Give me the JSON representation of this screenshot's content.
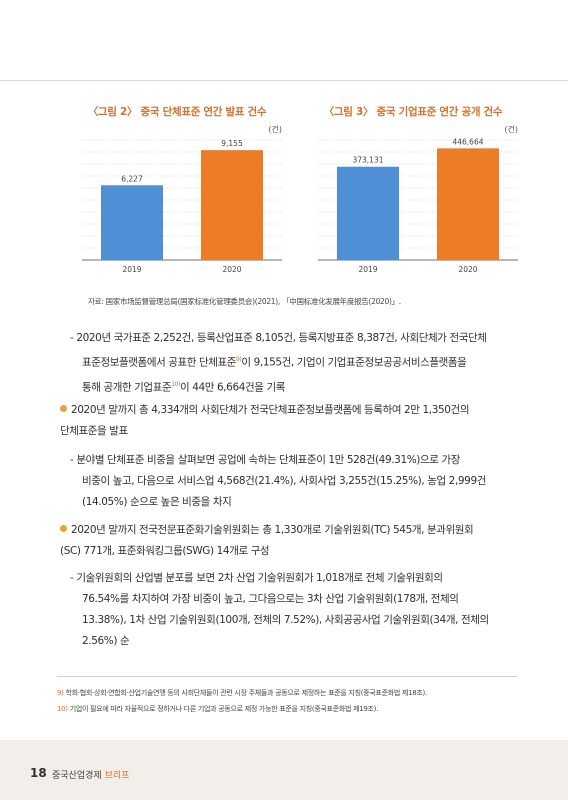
{
  "chart_data": [
    {
      "type": "bar",
      "title": "〈그림 2〉 중국 단체표준 연간 발표 건수",
      "unit": "(건)",
      "categories": [
        "2019",
        "2020"
      ],
      "values": [
        6227,
        9155
      ],
      "value_labels": [
        "6,227",
        "9,155"
      ],
      "ylim": [
        0,
        10000
      ],
      "colors": [
        "#4f8fd6",
        "#ec7c26"
      ],
      "grid": true
    },
    {
      "type": "bar",
      "title": "〈그림 3〉 중국 기업표준 연간 공개 건수",
      "unit": "(건)",
      "categories": [
        "2019",
        "2020"
      ],
      "values": [
        373131,
        446664
      ],
      "value_labels": [
        "373,131",
        "446,664"
      ],
      "ylim": [
        0,
        480000
      ],
      "colors": [
        "#4f8fd6",
        "#ec7c26"
      ],
      "grid": true
    }
  ],
  "source": "자료: 国家市场监督管理总局(国家标准化管理委员会)(2021), 「中国标准化发展年度报告(2020)」.",
  "bullet1_sub": {
    "l1": "- 2020년 국가표준 2,252건, 등록산업표준 8,105건, 등록지방표준 8,387건, 사회단체가 전국단체",
    "l2a": "표준정보플랫폼에서 공표한 단체표준",
    "l2sup": "9)",
    "l2b": "이 9,155건, 기업이 기업표준정보공공서비스플랫폼을",
    "l3a": "통해 공개한 기업표준",
    "l3sup": "10)",
    "l3b": "이 44만 6,664건을 기록"
  },
  "bullet2": {
    "l1": "2020년 말까지 총 4,334개의 사회단체가 전국단체표준정보플랫폼에 등록하여 2만 1,350건의",
    "l2": "단체표준을 발표",
    "sub1": "- 분야별 단체표준 비중을 살펴보면 공업에 속하는 단체표준이 1만 528건(49.31%)으로 가장",
    "sub2": "비중이 높고, 다음으로 서비스업 4,568건(21.4%), 사회사업 3,255건(15.25%), 농업 2,999건",
    "sub3": "(14.05%) 순으로 높은 비중을 차지"
  },
  "bullet3": {
    "l1": "2020년 말까지 전국전문표준화기술위원회는 총 1,330개로 기술위원회(TC) 545개, 분과위원회",
    "l2": "(SC) 771개, 표준화워킹그룹(SWG) 14개로 구성",
    "sub1": "- 기술위원회의 산업별 분포를 보면 2차 산업 기술위원회가 1,018개로 전체 기술위원회의",
    "sub2": "76.54%를 차지하여 가장 비중이 높고, 그다음으로는 3차 산업 기술위원회(178개, 전체의",
    "sub3": "13.38%), 1차 산업 기술위원회(100개, 전체의 7.52%), 사회공공사업 기술위원회(34개, 전체의",
    "sub4": "2.56%) 순"
  },
  "footnotes": {
    "f1_num": "9)",
    "f1": "학회·협회·상회·연합회·산업기술연맹 등의 사회단체들이 관련 시장 주체들과 공동으로 제정하는 표준을 지칭(중국표준화법 제18조).",
    "f2_num": "10)",
    "f2": "기업이 필요에 따라 자율적으로 정하거나 다른 기업과 공동으로 제정 가능한 표준을 지칭(중국표준화법 제19조)."
  },
  "footer": {
    "page": "18",
    "pub_main": "중국산업경제",
    "pub_accent": "브리프"
  }
}
